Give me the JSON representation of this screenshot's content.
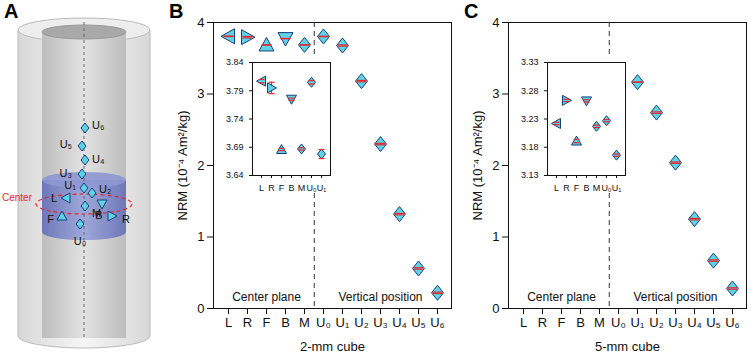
{
  "diagram": {
    "title": "A",
    "center": "Center",
    "labels": [
      "U₆",
      "U₅",
      "U₄",
      "U₃",
      "U₁",
      "U₂",
      "L",
      "B",
      "M",
      "R",
      "F",
      "U₀"
    ],
    "markers": [
      "diamond",
      "diamond",
      "diamond",
      "diamond",
      "diamond",
      "diamond",
      "triangle-left",
      "triangle-down",
      "diamond",
      "triangle-right",
      "triangle-up",
      "diamond"
    ]
  },
  "chart_data": [
    {
      "type": "scatter",
      "title": "B",
      "xlabel": "2-mm cube",
      "ylabel": "NRM (10⁻⁴ Am²/kg)",
      "categories": [
        "L",
        "R",
        "F",
        "B",
        "M",
        "U₀",
        "U₁",
        "U₂",
        "U₃",
        "U₄",
        "U₅",
        "U₆"
      ],
      "values": [
        3.807,
        3.795,
        3.686,
        3.775,
        3.687,
        3.805,
        3.678,
        3.18,
        2.3,
        1.32,
        0.56,
        0.22
      ],
      "errors": [
        0.003,
        0.01,
        0.002,
        0.002,
        0.002,
        0.003,
        0.008,
        0.01,
        0.01,
        0.01,
        0.01,
        0.01
      ],
      "markers": [
        "triangle-left",
        "triangle-right",
        "triangle-up",
        "triangle-down",
        "diamond",
        "diamond",
        "diamond",
        "diamond",
        "diamond",
        "diamond",
        "diamond",
        "diamond"
      ],
      "color": "#5fd3e6",
      "ylim": [
        0,
        4
      ],
      "yticks": [
        0,
        1,
        2,
        3,
        4
      ],
      "annotations": [
        "Center plane",
        "Vertical position"
      ],
      "inset": {
        "categories": [
          "L",
          "R",
          "F",
          "B",
          "M",
          "U₀",
          "U₁"
        ],
        "ylim": [
          3.64,
          3.84
        ],
        "yticks": [
          3.64,
          3.69,
          3.74,
          3.79,
          3.84
        ]
      }
    },
    {
      "type": "scatter",
      "title": "C",
      "xlabel": "5-mm cube",
      "ylabel": "NRM (10⁻⁴ Am²/kg)",
      "categories": [
        "L",
        "R",
        "F",
        "B",
        "M",
        "U₀",
        "U₁",
        "U₂",
        "U₃",
        "U₄",
        "U₅",
        "U₆"
      ],
      "values": [
        3.222,
        3.263,
        3.191,
        3.262,
        3.217,
        3.227,
        3.166,
        2.74,
        2.04,
        1.25,
        0.67,
        0.28
      ],
      "errors": [
        0.002,
        0.002,
        0.003,
        0.002,
        0.002,
        0.002,
        0.002,
        0.01,
        0.01,
        0.01,
        0.01,
        0.01
      ],
      "markers": [
        "triangle-left",
        "triangle-right",
        "triangle-up",
        "triangle-down",
        "diamond",
        "diamond",
        "diamond",
        "diamond",
        "diamond",
        "diamond",
        "diamond",
        "diamond"
      ],
      "color": "#5fd3e6",
      "ylim": [
        0,
        4
      ],
      "yticks": [
        0,
        1,
        2,
        3,
        4
      ],
      "annotations": [
        "Center plane",
        "Vertical position"
      ],
      "inset": {
        "categories": [
          "L",
          "R",
          "F",
          "B",
          "M",
          "U₀",
          "U₁"
        ],
        "ylim": [
          3.13,
          3.33
        ],
        "yticks": [
          3.13,
          3.18,
          3.23,
          3.28,
          3.33
        ]
      }
    }
  ]
}
